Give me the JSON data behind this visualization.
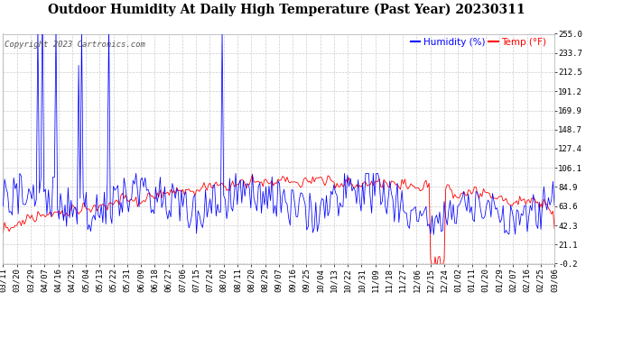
{
  "title": "Outdoor Humidity At Daily High Temperature (Past Year) 20230311",
  "copyright": "Copyright 2023 Cartronics.com",
  "legend_humidity": "Humidity (%)",
  "legend_temp": "Temp (°F)",
  "humidity_color": "#0000ff",
  "temp_color": "#ff0000",
  "bg_color": "#ffffff",
  "grid_color": "#cccccc",
  "yticks": [
    255.0,
    233.7,
    212.5,
    191.2,
    169.9,
    148.7,
    127.4,
    106.1,
    84.9,
    63.6,
    42.3,
    21.1,
    -0.2
  ],
  "xlabels": [
    "03/11",
    "03/20",
    "03/29",
    "04/07",
    "04/16",
    "04/25",
    "05/04",
    "05/13",
    "05/22",
    "05/31",
    "06/09",
    "06/18",
    "06/27",
    "07/06",
    "07/15",
    "07/24",
    "08/02",
    "08/11",
    "08/20",
    "08/29",
    "09/07",
    "09/16",
    "09/25",
    "10/04",
    "10/13",
    "10/22",
    "10/31",
    "11/09",
    "11/18",
    "11/27",
    "12/06",
    "12/15",
    "12/24",
    "01/02",
    "01/11",
    "01/20",
    "01/29",
    "02/07",
    "02/16",
    "02/25",
    "03/06"
  ],
  "ylim": [
    -0.2,
    255.0
  ],
  "title_fontsize": 10,
  "tick_fontsize": 6.5,
  "copyright_fontsize": 6.5,
  "legend_fontsize": 7.5,
  "spike_days": [
    23,
    26,
    35,
    50,
    52,
    70,
    145
  ],
  "spike_vals": [
    265,
    290,
    265,
    220,
    260,
    265,
    260
  ]
}
